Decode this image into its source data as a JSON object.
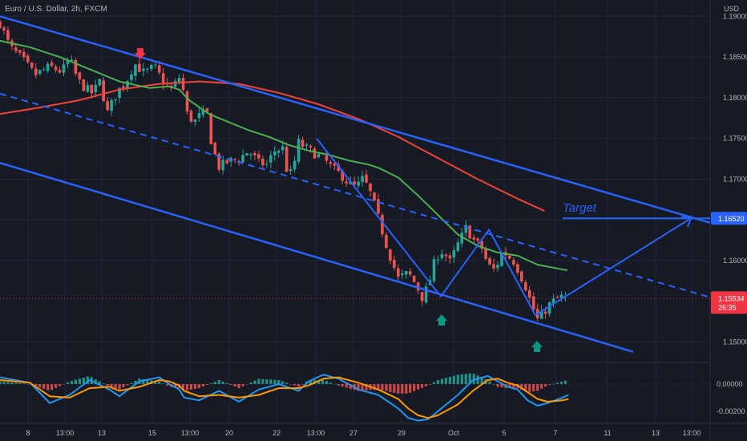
{
  "header": {
    "symbol": "Euro / U.S. Dollar, 2h, FXCM",
    "currency": "USD"
  },
  "colors": {
    "bg": "#161a25",
    "grid": "#232733",
    "axis_text": "#b2b5be",
    "up": "#26a69a",
    "down": "#ef5350",
    "channel": "#2962ff",
    "target": "#2962ff",
    "ma_fast": "#4caf50",
    "ma_slow": "#f44336",
    "macd": "#2196f3",
    "signal": "#ff9800",
    "hist_up": "#26a69a",
    "hist_down": "#ef5350",
    "arrow_down": "#f23645",
    "arrow_up": "#089981"
  },
  "chart_data": [
    {
      "type": "candlestick",
      "title": "Euro / U.S. Dollar, 2h, FXCM",
      "ylim": [
        1.1475,
        1.192
      ],
      "y_ticks": [
        "1.19000",
        "1.18500",
        "1.18000",
        "1.17500",
        "1.17000",
        "1.16500",
        "1.16000",
        "1.15000"
      ],
      "x_ticks": [
        "8",
        "13:00",
        "13",
        "15",
        "13:00",
        "20",
        "22",
        "13:00",
        "27",
        "29",
        "Oct",
        "5",
        "7",
        "11",
        "13",
        "13:00"
      ],
      "last_price": {
        "value": "1.15534",
        "countdown": "26:35"
      },
      "target_price": {
        "value": "1.16520",
        "label": "Target"
      },
      "price_path": [
        [
          0,
          1.1892
        ],
        [
          10,
          1.1862
        ],
        [
          22,
          1.1848
        ],
        [
          35,
          1.1828
        ],
        [
          50,
          1.1838
        ],
        [
          62,
          1.1832
        ],
        [
          70,
          1.1848
        ],
        [
          78,
          1.1822
        ],
        [
          85,
          1.1812
        ],
        [
          93,
          1.1805
        ],
        [
          100,
          1.182
        ],
        [
          108,
          1.1782
        ],
        [
          118,
          1.1808
        ],
        [
          126,
          1.1818
        ],
        [
          135,
          1.1842
        ],
        [
          145,
          1.183
        ],
        [
          155,
          1.1838
        ],
        [
          165,
          1.1818
        ],
        [
          172,
          1.181
        ],
        [
          180,
          1.1825
        ],
        [
          185,
          1.1805
        ],
        [
          188,
          1.178
        ],
        [
          195,
          1.177
        ],
        [
          202,
          1.178
        ],
        [
          208,
          1.178
        ],
        [
          213,
          1.174
        ],
        [
          220,
          1.1715
        ],
        [
          230,
          1.1722
        ],
        [
          240,
          1.1725
        ],
        [
          250,
          1.1735
        ],
        [
          260,
          1.172
        ],
        [
          268,
          1.1718
        ],
        [
          276,
          1.1735
        ],
        [
          284,
          1.1738
        ],
        [
          290,
          1.17
        ],
        [
          296,
          1.1722
        ],
        [
          300,
          1.1745
        ],
        [
          305,
          1.174
        ],
        [
          315,
          1.1732
        ],
        [
          325,
          1.1725
        ],
        [
          335,
          1.1712
        ],
        [
          343,
          1.1705
        ],
        [
          350,
          1.1695
        ],
        [
          358,
          1.169
        ],
        [
          364,
          1.17
        ],
        [
          370,
          1.169
        ],
        [
          377,
          1.1665
        ],
        [
          383,
          1.164
        ],
        [
          390,
          1.1612
        ],
        [
          400,
          1.1578
        ],
        [
          410,
          1.1585
        ],
        [
          418,
          1.157
        ],
        [
          424,
          1.1555
        ],
        [
          430,
          1.1568
        ],
        [
          438,
          1.1605
        ],
        [
          445,
          1.1612
        ],
        [
          452,
          1.1598
        ],
        [
          460,
          1.162
        ],
        [
          468,
          1.164
        ],
        [
          476,
          1.1625
        ],
        [
          484,
          1.1615
        ],
        [
          490,
          1.1595
        ],
        [
          497,
          1.1588
        ],
        [
          505,
          1.1612
        ],
        [
          511,
          1.1605
        ],
        [
          517,
          1.1598
        ],
        [
          522,
          1.1585
        ],
        [
          528,
          1.1568
        ],
        [
          534,
          1.1546
        ],
        [
          540,
          1.1528
        ],
        [
          545,
          1.1534
        ],
        [
          551,
          1.1545
        ],
        [
          558,
          1.1552
        ],
        [
          565,
          1.1556
        ],
        [
          571,
          1.1553
        ]
      ],
      "ma_fast": [
        [
          0,
          1.187
        ],
        [
          30,
          1.1862
        ],
        [
          60,
          1.185
        ],
        [
          90,
          1.1835
        ],
        [
          120,
          1.182
        ],
        [
          150,
          1.1812
        ],
        [
          170,
          1.1814
        ],
        [
          180,
          1.181
        ],
        [
          190,
          1.1797
        ],
        [
          210,
          1.178
        ],
        [
          230,
          1.177
        ],
        [
          250,
          1.176
        ],
        [
          270,
          1.1752
        ],
        [
          290,
          1.1742
        ],
        [
          310,
          1.1735
        ],
        [
          330,
          1.173
        ],
        [
          350,
          1.1723
        ],
        [
          370,
          1.1718
        ],
        [
          380,
          1.1714
        ],
        [
          400,
          1.1702
        ],
        [
          420,
          1.168
        ],
        [
          440,
          1.1656
        ],
        [
          460,
          1.1632
        ],
        [
          480,
          1.1618
        ],
        [
          500,
          1.161
        ],
        [
          520,
          1.1606
        ],
        [
          540,
          1.1595
        ],
        [
          570,
          1.1588
        ]
      ],
      "ma_slow": [
        [
          0,
          1.178
        ],
        [
          40,
          1.1788
        ],
        [
          80,
          1.1797
        ],
        [
          120,
          1.181
        ],
        [
          160,
          1.1817
        ],
        [
          200,
          1.182
        ],
        [
          240,
          1.1817
        ],
        [
          280,
          1.1806
        ],
        [
          320,
          1.1792
        ],
        [
          360,
          1.1774
        ],
        [
          400,
          1.1752
        ],
        [
          440,
          1.1726
        ],
        [
          480,
          1.17
        ],
        [
          520,
          1.1676
        ],
        [
          547,
          1.1661
        ]
      ],
      "macd_panel": {
        "ylim": [
          -0.0029,
          0.0016
        ],
        "y_ticks": [
          "0.00000",
          "-0.00200"
        ],
        "macd": [
          [
            0,
            0.0005
          ],
          [
            30,
            0.0001
          ],
          [
            50,
            -0.0014
          ],
          [
            70,
            -0.0008
          ],
          [
            90,
            0.0003
          ],
          [
            110,
            -0.0004
          ],
          [
            120,
            -0.0009
          ],
          [
            140,
            0.0002
          ],
          [
            160,
            0.0005
          ],
          [
            170,
            0.0
          ],
          [
            180,
            -0.0004
          ],
          [
            185,
            -0.001
          ],
          [
            200,
            -0.0012
          ],
          [
            220,
            -0.0005
          ],
          [
            240,
            -0.0013
          ],
          [
            260,
            -0.0004
          ],
          [
            280,
            0.0
          ],
          [
            300,
            -0.0005
          ],
          [
            310,
            0.0002
          ],
          [
            325,
            0.0007
          ],
          [
            340,
            0.0004
          ],
          [
            360,
            -0.0004
          ],
          [
            380,
            -0.0008
          ],
          [
            400,
            -0.0018
          ],
          [
            410,
            -0.0025
          ],
          [
            420,
            -0.0027
          ],
          [
            430,
            -0.0026
          ],
          [
            440,
            -0.002
          ],
          [
            460,
            -0.0008
          ],
          [
            475,
            0.0003
          ],
          [
            490,
            0.0006
          ],
          [
            500,
            0.0002
          ],
          [
            510,
            -0.0002
          ],
          [
            520,
            -0.0004
          ],
          [
            530,
            -0.0012
          ],
          [
            540,
            -0.0016
          ],
          [
            550,
            -0.0014
          ],
          [
            565,
            -0.001
          ],
          [
            571,
            -0.0008
          ]
        ],
        "signal": [
          [
            0,
            0.0003
          ],
          [
            30,
            0.0001
          ],
          [
            50,
            -0.0009
          ],
          [
            70,
            -0.001
          ],
          [
            90,
            -0.0003
          ],
          [
            110,
            -0.0002
          ],
          [
            120,
            -0.0005
          ],
          [
            140,
            -0.0002
          ],
          [
            160,
            0.0003
          ],
          [
            170,
            0.0002
          ],
          [
            180,
            -0.0001
          ],
          [
            185,
            -0.0005
          ],
          [
            200,
            -0.0009
          ],
          [
            220,
            -0.0008
          ],
          [
            240,
            -0.001
          ],
          [
            260,
            -0.0008
          ],
          [
            280,
            -0.0003
          ],
          [
            300,
            -0.0003
          ],
          [
            310,
            -0.0001
          ],
          [
            325,
            0.0004
          ],
          [
            340,
            0.0005
          ],
          [
            360,
            0.0001
          ],
          [
            380,
            -0.0004
          ],
          [
            400,
            -0.0011
          ],
          [
            410,
            -0.0018
          ],
          [
            420,
            -0.0023
          ],
          [
            430,
            -0.0025
          ],
          [
            440,
            -0.0023
          ],
          [
            460,
            -0.0015
          ],
          [
            475,
            -0.0005
          ],
          [
            490,
            0.0003
          ],
          [
            500,
            0.0004
          ],
          [
            510,
            0.0001
          ],
          [
            520,
            -0.0001
          ],
          [
            530,
            -0.0006
          ],
          [
            540,
            -0.0011
          ],
          [
            550,
            -0.0013
          ],
          [
            565,
            -0.0012
          ],
          [
            571,
            -0.0011
          ]
        ]
      }
    }
  ]
}
